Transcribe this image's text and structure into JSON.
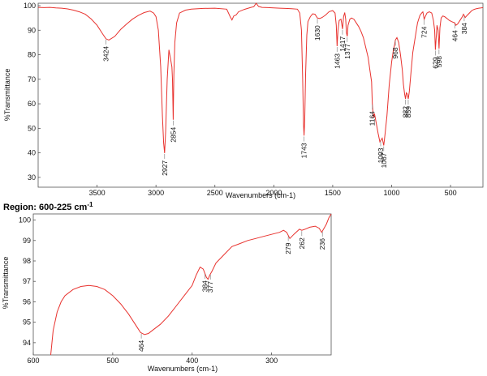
{
  "chart_data": [
    {
      "type": "line",
      "xlabel": "Wavenumbers (cm-1)",
      "ylabel": "%Transmittance",
      "xlim": [
        4000,
        225
      ],
      "ylim": [
        26,
        101
      ],
      "x_ticks": [
        3500,
        3000,
        2500,
        2000,
        1500,
        1000,
        500
      ],
      "y_ticks": [
        30,
        40,
        50,
        60,
        70,
        80,
        90,
        100
      ],
      "grid": false,
      "line_color": "#e8322e",
      "peak_labels": [
        "3424",
        "2927",
        "2854",
        "1743",
        "1630",
        "1463",
        "1417",
        "1377",
        "1164",
        "1093",
        "1067",
        "968",
        "882",
        "859",
        "724",
        "629",
        "598",
        "464",
        "384"
      ],
      "series": [
        {
          "x": [
            4000,
            3950,
            3900,
            3850,
            3800,
            3750,
            3700,
            3650,
            3600,
            3550,
            3500,
            3450,
            3424,
            3400,
            3350,
            3300,
            3250,
            3200,
            3150,
            3100,
            3050,
            3020,
            3000,
            2980,
            2960,
            2945,
            2935,
            2927,
            2918,
            2905,
            2890,
            2875,
            2865,
            2860,
            2854,
            2848,
            2840,
            2825,
            2800,
            2750,
            2700,
            2600,
            2500,
            2400,
            2370,
            2355,
            2340,
            2320,
            2300,
            2250,
            2200,
            2170,
            2150,
            2130,
            2100,
            2050,
            2000,
            1950,
            1900,
            1850,
            1800,
            1780,
            1765,
            1755,
            1748,
            1743,
            1738,
            1730,
            1720,
            1710,
            1690,
            1670,
            1650,
            1630,
            1610,
            1590,
            1560,
            1530,
            1500,
            1480,
            1470,
            1463,
            1455,
            1445,
            1430,
            1417,
            1408,
            1398,
            1390,
            1384,
            1377,
            1370,
            1355,
            1340,
            1320,
            1300,
            1280,
            1260,
            1240,
            1220,
            1200,
            1185,
            1170,
            1164,
            1155,
            1145,
            1130,
            1115,
            1100,
            1093,
            1080,
            1067,
            1055,
            1040,
            1020,
            1000,
            985,
            975,
            968,
            955,
            940,
            925,
            910,
            900,
            890,
            882,
            875,
            868,
            859,
            850,
            835,
            820,
            800,
            780,
            760,
            745,
            735,
            724,
            715,
            700,
            680,
            660,
            645,
            635,
            629,
            622,
            615,
            605,
            598,
            590,
            580,
            565,
            550,
            530,
            510,
            490,
            475,
            464,
            455,
            440,
            420,
            400,
            390,
            384,
            375,
            360,
            340,
            320,
            300,
            280,
            260,
            240,
            225
          ],
          "y": [
            99.3,
            99.2,
            99.3,
            99.1,
            99,
            98.7,
            98.2,
            97.5,
            96.5,
            94.6,
            92,
            88.3,
            86.5,
            86,
            87.5,
            90.3,
            92.5,
            94.5,
            96,
            97.2,
            97.8,
            97,
            95.5,
            90,
            75,
            55,
            44,
            39.9,
            49,
            70,
            82,
            78,
            75,
            70,
            53.5,
            72,
            85,
            93,
            97,
            98.2,
            98.6,
            98.9,
            99,
            98.6,
            95.5,
            94.2,
            95.8,
            96.2,
            97.5,
            98.5,
            99.2,
            99.6,
            101.2,
            99.7,
            99.3,
            99.2,
            99.1,
            99,
            98.9,
            98.8,
            98.6,
            97,
            90,
            70,
            52,
            47,
            53,
            72,
            88,
            93.5,
            95.5,
            96.7,
            96.5,
            95,
            94.8,
            95.2,
            96.2,
            97.6,
            98,
            97,
            92,
            83.5,
            90,
            94,
            94.5,
            90.5,
            95.5,
            97.2,
            94.5,
            89,
            87.5,
            92,
            94.5,
            95,
            94.5,
            93,
            91.5,
            89.5,
            87,
            83,
            79,
            74,
            69,
            60,
            54.5,
            56,
            52,
            48,
            44.5,
            45,
            46,
            43,
            48,
            55,
            68,
            77,
            82,
            84,
            86,
            87,
            85,
            80,
            74,
            68,
            64,
            62,
            64.5,
            64,
            62,
            65,
            73,
            81,
            87,
            93,
            96,
            97,
            97.5,
            94.5,
            95.5,
            97,
            97.5,
            97,
            94,
            90,
            82,
            87,
            92,
            90,
            82.5,
            91,
            95,
            95.8,
            95.5,
            94.8,
            94,
            93.5,
            93.2,
            93,
            92,
            92.5,
            94,
            95.5,
            96.5,
            96,
            95.2,
            96,
            97,
            98,
            98.5,
            98.8,
            99,
            99.1,
            99.2
          ]
        }
      ]
    },
    {
      "type": "line",
      "title": "Region: 600-225 cm",
      "title_superscript": "-1",
      "xlabel": "Wavenumbers (cm-1)",
      "ylabel": "%Transmittance",
      "xlim": [
        600,
        225
      ],
      "ylim": [
        93.4,
        100.3
      ],
      "x_ticks": [
        600,
        500,
        400,
        300
      ],
      "y_ticks": [
        94,
        95,
        96,
        97,
        98,
        99,
        100
      ],
      "grid": false,
      "line_color": "#e8322e",
      "peak_labels": [
        "464",
        "384",
        "377",
        "279",
        "262",
        "236"
      ],
      "series": [
        {
          "x": [
            578,
            575,
            570,
            565,
            560,
            550,
            540,
            530,
            520,
            510,
            500,
            490,
            480,
            470,
            465,
            460,
            455,
            450,
            440,
            430,
            420,
            410,
            400,
            395,
            390,
            386,
            382,
            380,
            378,
            375,
            370,
            360,
            350,
            340,
            330,
            320,
            310,
            300,
            290,
            285,
            281,
            277,
            272,
            265,
            262,
            258,
            252,
            245,
            240,
            237,
            234,
            231,
            228,
            225
          ],
          "y": [
            93.4,
            94.6,
            95.5,
            96,
            96.3,
            96.6,
            96.75,
            96.8,
            96.75,
            96.6,
            96.3,
            95.9,
            95.4,
            94.8,
            94.5,
            94.4,
            94.45,
            94.6,
            94.9,
            95.3,
            95.8,
            96.3,
            96.8,
            97.3,
            97.7,
            97.6,
            97.2,
            97.1,
            97.3,
            97.5,
            97.9,
            98.3,
            98.7,
            98.85,
            99,
            99.1,
            99.2,
            99.3,
            99.4,
            99.5,
            99.4,
            99.1,
            99.3,
            99.55,
            99.5,
            99.55,
            99.65,
            99.7,
            99.6,
            99.4,
            99.6,
            99.8,
            100.1,
            100.4
          ]
        }
      ]
    }
  ]
}
